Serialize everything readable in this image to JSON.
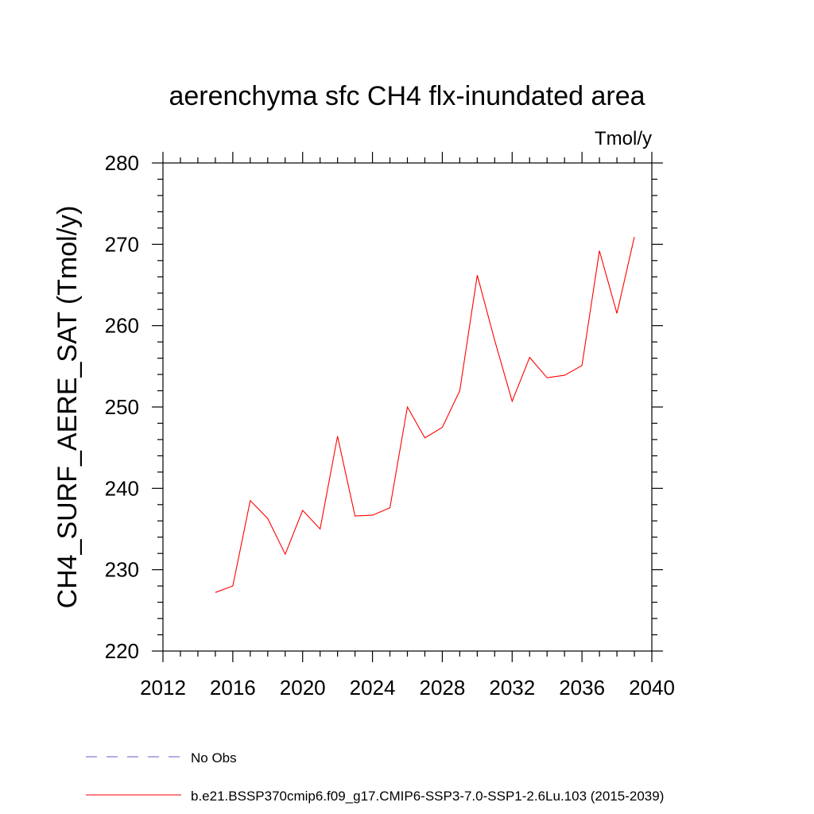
{
  "chart_data": {
    "type": "line",
    "title": "aerenchyma sfc CH4 flx-inundated area",
    "units_label": "Tmol/y",
    "ylabel": "CH4_SURF_AERE_SAT  (Tmol/y)",
    "xlabel": "",
    "xlim": [
      2012,
      2040
    ],
    "ylim": [
      220,
      280
    ],
    "x_ticks": [
      2012,
      2016,
      2020,
      2024,
      2028,
      2032,
      2036,
      2040
    ],
    "y_ticks": [
      220,
      230,
      240,
      250,
      260,
      270,
      280
    ],
    "grid": false,
    "legend_position": "bottom",
    "series": [
      {
        "name": "b.e21.BSSP370cmip6.f09_g17.CMIP6-SSP3-7.0-SSP1-2.6Lu.103 (2015-2039)",
        "color": "#ff0000",
        "style": "solid",
        "x": [
          2015,
          2016,
          2017,
          2018,
          2019,
          2020,
          2021,
          2022,
          2023,
          2024,
          2025,
          2026,
          2027,
          2028,
          2029,
          2030,
          2031,
          2032,
          2033,
          2034,
          2035,
          2036,
          2037,
          2038,
          2039
        ],
        "values": [
          227.2,
          228.0,
          238.5,
          236.3,
          231.9,
          237.3,
          235.0,
          246.4,
          236.6,
          236.7,
          237.6,
          250.0,
          246.2,
          247.5,
          252.0,
          266.2,
          258.2,
          250.7,
          256.1,
          253.6,
          253.9,
          255.1,
          269.2,
          261.5,
          270.9
        ]
      },
      {
        "name": "No Obs",
        "color": "#6a5acd",
        "style": "dashed",
        "x": [],
        "values": []
      }
    ]
  }
}
